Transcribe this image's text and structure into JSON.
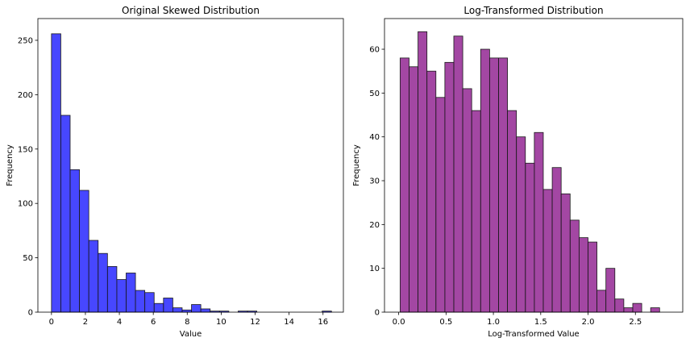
{
  "chart_data": [
    {
      "type": "bar",
      "title": "Original Skewed Distribution",
      "xlabel": "Value",
      "ylabel": "Frequency",
      "xlim": [
        -0.8,
        17.2
      ],
      "ylim": [
        0,
        270
      ],
      "xticks": [
        0,
        2,
        4,
        6,
        8,
        10,
        12,
        14,
        16
      ],
      "yticks": [
        0,
        50,
        100,
        150,
        200,
        250
      ],
      "bin_start": 0.0,
      "bin_width": 0.55,
      "values": [
        256,
        181,
        131,
        112,
        66,
        54,
        42,
        30,
        36,
        20,
        18,
        8,
        13,
        4,
        2,
        7,
        3,
        1,
        1,
        0,
        1,
        1,
        0,
        0,
        0,
        0,
        0,
        0,
        0,
        1
      ],
      "fill": "#0000ff",
      "fill_opacity": 0.72,
      "edge": "#1a1a1a",
      "grid": false
    },
    {
      "type": "bar",
      "title": "Log-Transformed Distribution",
      "xlabel": "Log-Transformed Value",
      "ylabel": "Frequency",
      "xlim": [
        -0.15,
        3.0
      ],
      "ylim": [
        0,
        67
      ],
      "xticks": [
        0.0,
        0.5,
        1.0,
        1.5,
        2.0,
        2.5
      ],
      "yticks": [
        0,
        10,
        20,
        30,
        40,
        50,
        60
      ],
      "bin_start": 0.015,
      "bin_width": 0.0945,
      "values": [
        58,
        56,
        64,
        55,
        49,
        57,
        63,
        51,
        46,
        60,
        58,
        58,
        46,
        40,
        34,
        41,
        28,
        33,
        27,
        21,
        17,
        16,
        5,
        10,
        3,
        1,
        2,
        0,
        1
      ],
      "fill": "#800080",
      "fill_opacity": 0.72,
      "edge": "#1a1a1a",
      "grid": false
    }
  ]
}
